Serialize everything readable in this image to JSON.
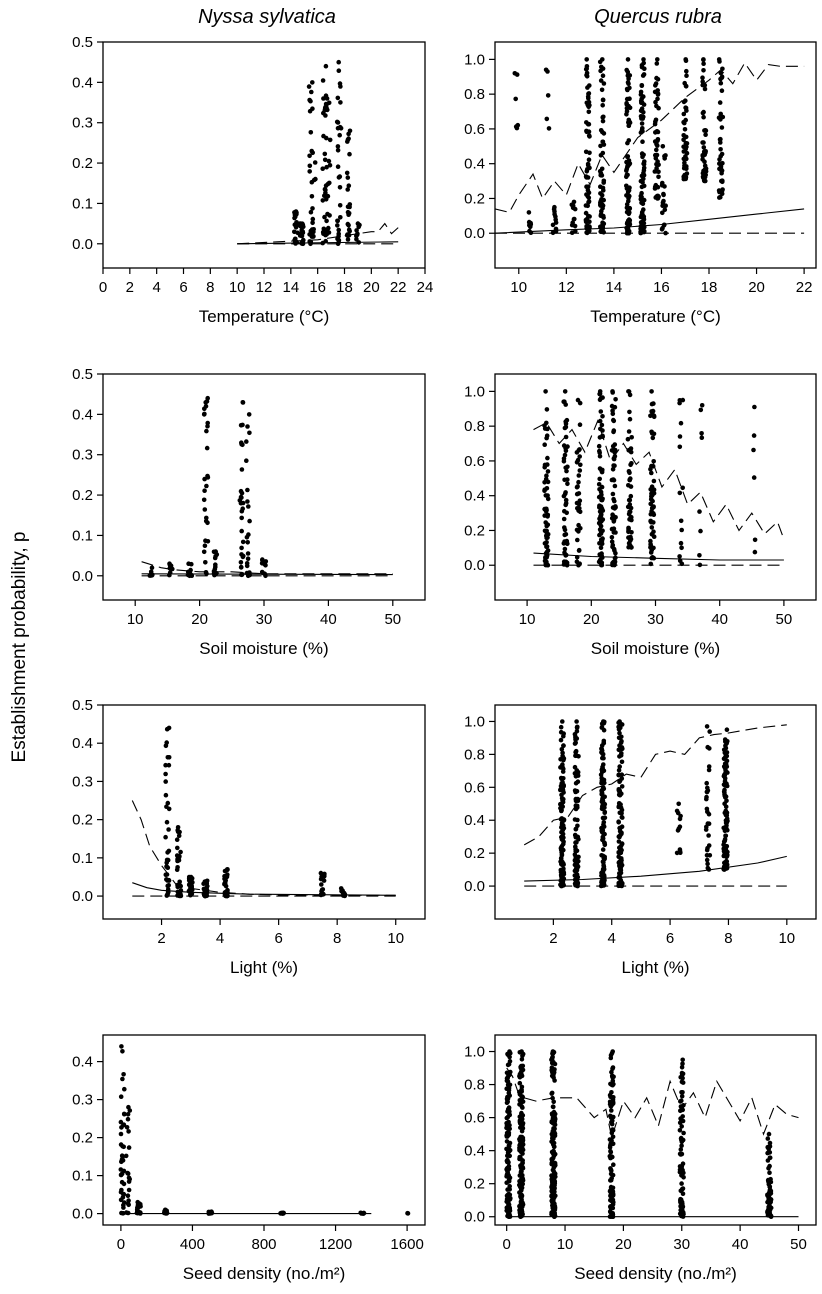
{
  "column_titles": [
    "Nyssa sylvatica",
    "Quercus rubra"
  ],
  "shared_ylabel": "Establishment probability, p",
  "chart_data": [
    {
      "id": "nyssa-temperature",
      "type": "scatter",
      "species": "Nyssa sylvatica",
      "xlabel": "Temperature (°C)",
      "xlim": [
        0,
        24
      ],
      "ylim": [
        -0.06,
        0.5
      ],
      "xticks": [
        0,
        2,
        4,
        6,
        8,
        10,
        12,
        14,
        16,
        18,
        20,
        22,
        24
      ],
      "yticks": [
        0.0,
        0.1,
        0.2,
        0.3,
        0.4,
        0.5
      ],
      "clusters": [
        {
          "x": 14.4,
          "ymax": 0.08,
          "n": 24
        },
        {
          "x": 14.8,
          "ymax": 0.05,
          "n": 18
        },
        {
          "x": 15.5,
          "ymax": 0.4,
          "n": 22
        },
        {
          "x": 15.7,
          "ymax": 0.23,
          "n": 14
        },
        {
          "x": 16.5,
          "ymax": 0.44,
          "n": 30
        },
        {
          "x": 16.8,
          "ymax": 0.36,
          "n": 20
        },
        {
          "x": 17.6,
          "ymax": 0.45,
          "n": 30
        },
        {
          "x": 18.3,
          "ymax": 0.28,
          "n": 24
        },
        {
          "x": 19.0,
          "ymax": 0.05,
          "n": 10
        }
      ],
      "lines": [
        {
          "style": "dashed",
          "x": [
            10,
            13,
            16,
            18,
            19,
            20,
            20.5,
            21,
            21.5,
            22
          ],
          "y": [
            0.0,
            0.005,
            0.01,
            0.02,
            0.025,
            0.03,
            0.03,
            0.05,
            0.025,
            0.04
          ]
        },
        {
          "style": "solid",
          "x": [
            10,
            22
          ],
          "y": [
            0.0,
            0.005
          ]
        },
        {
          "style": "dashed",
          "x": [
            10,
            22
          ],
          "y": [
            0.0,
            0.0
          ]
        }
      ]
    },
    {
      "id": "quercus-temperature",
      "type": "scatter",
      "species": "Quercus rubra",
      "xlabel": "Temperature (°C)",
      "xlim": [
        9,
        22.5
      ],
      "ylim": [
        -0.2,
        1.1
      ],
      "xticks": [
        10,
        12,
        14,
        16,
        18,
        20,
        22
      ],
      "yticks": [
        0.0,
        0.2,
        0.4,
        0.6,
        0.8,
        1.0
      ],
      "clusters": [
        {
          "x": 9.9,
          "ymax": 0.92,
          "ymin": 0.6,
          "n": 6
        },
        {
          "x": 11.2,
          "ymax": 0.94,
          "ymin": 0.6,
          "n": 5
        },
        {
          "x": 12.9,
          "ymax": 1.0,
          "ymin": 0.0,
          "n": 70
        },
        {
          "x": 13.5,
          "ymax": 1.0,
          "ymin": 0.0,
          "n": 70
        },
        {
          "x": 14.6,
          "ymax": 1.0,
          "ymin": 0.0,
          "n": 80
        },
        {
          "x": 15.2,
          "ymax": 1.0,
          "ymin": 0.0,
          "n": 80
        },
        {
          "x": 15.8,
          "ymax": 1.0,
          "ymin": 0.2,
          "n": 50
        },
        {
          "x": 16.1,
          "ymax": 0.5,
          "ymin": 0.0,
          "n": 20
        },
        {
          "x": 17.0,
          "ymax": 1.0,
          "ymin": 0.3,
          "n": 45
        },
        {
          "x": 17.8,
          "ymax": 1.0,
          "ymin": 0.3,
          "n": 45
        },
        {
          "x": 18.5,
          "ymax": 1.0,
          "ymin": 0.2,
          "n": 40
        },
        {
          "x": 10.5,
          "ymax": 0.12,
          "ymin": 0.0,
          "n": 10
        },
        {
          "x": 11.5,
          "ymax": 0.15,
          "ymin": 0.0,
          "n": 12
        },
        {
          "x": 12.3,
          "ymax": 0.18,
          "ymin": 0.0,
          "n": 12
        }
      ],
      "lines": [
        {
          "style": "dashed",
          "x": [
            9,
            9.6,
            10,
            10.6,
            11,
            11.5,
            12,
            12.5,
            13,
            13.5,
            14,
            15,
            16,
            17,
            18,
            18.5,
            19,
            19.5,
            20,
            20.5,
            21,
            22
          ],
          "y": [
            0.14,
            0.12,
            0.22,
            0.34,
            0.2,
            0.3,
            0.22,
            0.4,
            0.28,
            0.45,
            0.35,
            0.55,
            0.65,
            0.78,
            0.88,
            0.94,
            0.86,
            0.98,
            0.88,
            0.97,
            0.96,
            0.96
          ]
        },
        {
          "style": "solid",
          "x": [
            9,
            12,
            14,
            16,
            18,
            20,
            22
          ],
          "y": [
            0.0,
            0.02,
            0.03,
            0.05,
            0.08,
            0.11,
            0.14
          ]
        },
        {
          "style": "dashed",
          "x": [
            9,
            22
          ],
          "y": [
            0.0,
            0.0
          ]
        }
      ]
    },
    {
      "id": "nyssa-soil",
      "type": "scatter",
      "species": "Nyssa sylvatica",
      "xlabel": "Soil moisture (%)",
      "xlim": [
        5,
        55
      ],
      "ylim": [
        -0.06,
        0.5
      ],
      "xticks": [
        10,
        20,
        30,
        40,
        50
      ],
      "yticks": [
        0.0,
        0.1,
        0.2,
        0.3,
        0.4,
        0.5
      ],
      "clusters": [
        {
          "x": 12.5,
          "ymax": 0.02,
          "n": 8
        },
        {
          "x": 15.5,
          "ymax": 0.03,
          "n": 8
        },
        {
          "x": 18.5,
          "ymax": 0.03,
          "n": 10
        },
        {
          "x": 21.0,
          "ymax": 0.44,
          "n": 28
        },
        {
          "x": 22.5,
          "ymax": 0.06,
          "n": 14
        },
        {
          "x": 26.5,
          "ymax": 0.43,
          "n": 30
        },
        {
          "x": 27.5,
          "ymax": 0.4,
          "n": 20
        },
        {
          "x": 30.0,
          "ymax": 0.04,
          "n": 10
        }
      ],
      "lines": [
        {
          "style": "dashed",
          "x": [
            11,
            12,
            14,
            16,
            20,
            25,
            30,
            35,
            50
          ],
          "y": [
            0.035,
            0.03,
            0.02,
            0.015,
            0.01,
            0.01,
            0.005,
            0.005,
            0.005
          ]
        },
        {
          "style": "solid",
          "x": [
            11,
            50
          ],
          "y": [
            0.005,
            0.003
          ]
        },
        {
          "style": "dashed",
          "x": [
            11,
            50
          ],
          "y": [
            0.0,
            0.0
          ]
        }
      ]
    },
    {
      "id": "quercus-soil",
      "type": "scatter",
      "species": "Quercus rubra",
      "xlabel": "Soil moisture (%)",
      "xlim": [
        5,
        55
      ],
      "ylim": [
        -0.2,
        1.1
      ],
      "xticks": [
        10,
        20,
        30,
        40,
        50
      ],
      "yticks": [
        0.0,
        0.2,
        0.4,
        0.6,
        0.8,
        1.0
      ],
      "clusters": [
        {
          "x": 13,
          "ymax": 1.0,
          "ymin": 0.0,
          "n": 60
        },
        {
          "x": 16,
          "ymax": 1.0,
          "ymin": 0.0,
          "n": 50
        },
        {
          "x": 18,
          "ymax": 0.95,
          "ymin": 0.0,
          "n": 35
        },
        {
          "x": 21.5,
          "ymax": 1.0,
          "ymin": 0.0,
          "n": 80
        },
        {
          "x": 23.5,
          "ymax": 1.0,
          "ymin": 0.0,
          "n": 60
        },
        {
          "x": 26,
          "ymax": 1.0,
          "ymin": 0.1,
          "n": 50
        },
        {
          "x": 29.5,
          "ymax": 1.0,
          "ymin": 0.0,
          "n": 60
        },
        {
          "x": 34,
          "ymax": 0.95,
          "ymin": 0.0,
          "n": 15
        },
        {
          "x": 37,
          "ymax": 0.92,
          "ymin": 0.0,
          "n": 8
        },
        {
          "x": 45.5,
          "ymax": 0.91,
          "ymin": 0.0,
          "n": 6
        }
      ],
      "lines": [
        {
          "style": "dashed",
          "x": [
            11,
            13,
            15,
            17,
            19,
            21,
            23,
            25,
            27,
            29,
            31,
            33,
            35,
            37,
            39,
            41,
            43,
            45,
            47,
            49,
            50
          ],
          "y": [
            0.78,
            0.82,
            0.7,
            0.78,
            0.65,
            0.83,
            0.6,
            0.7,
            0.58,
            0.65,
            0.45,
            0.55,
            0.35,
            0.42,
            0.25,
            0.35,
            0.2,
            0.3,
            0.18,
            0.25,
            0.15
          ]
        },
        {
          "style": "solid",
          "x": [
            11,
            20,
            30,
            40,
            50
          ],
          "y": [
            0.07,
            0.05,
            0.04,
            0.03,
            0.03
          ]
        },
        {
          "style": "dashed",
          "x": [
            11,
            50
          ],
          "y": [
            0.0,
            0.0
          ]
        }
      ]
    },
    {
      "id": "nyssa-light",
      "type": "scatter",
      "species": "Nyssa sylvatica",
      "xlabel": "Light (%)",
      "xlim": [
        0,
        11
      ],
      "ylim": [
        -0.06,
        0.5
      ],
      "xticks": [
        2,
        4,
        6,
        8,
        10
      ],
      "yticks": [
        0.0,
        0.1,
        0.2,
        0.3,
        0.4,
        0.5
      ],
      "clusters": [
        {
          "x": 2.2,
          "ymax": 0.44,
          "n": 40
        },
        {
          "x": 2.6,
          "ymax": 0.18,
          "n": 30
        },
        {
          "x": 3.0,
          "ymax": 0.05,
          "n": 30
        },
        {
          "x": 3.5,
          "ymax": 0.04,
          "n": 30
        },
        {
          "x": 4.2,
          "ymax": 0.07,
          "n": 30
        },
        {
          "x": 7.5,
          "ymax": 0.06,
          "n": 14
        },
        {
          "x": 8.2,
          "ymax": 0.02,
          "n": 10
        }
      ],
      "lines": [
        {
          "style": "dashed",
          "x": [
            1,
            1.3,
            1.6,
            2,
            2.5,
            3,
            4,
            5,
            6,
            10
          ],
          "y": [
            0.25,
            0.2,
            0.13,
            0.08,
            0.03,
            0.02,
            0.01,
            0.005,
            0.003,
            0.002
          ]
        },
        {
          "style": "solid",
          "x": [
            1,
            1.5,
            2,
            3,
            5,
            10
          ],
          "y": [
            0.035,
            0.022,
            0.015,
            0.01,
            0.005,
            0.002
          ]
        },
        {
          "style": "dashed",
          "x": [
            1,
            10
          ],
          "y": [
            0.0,
            0.0
          ]
        }
      ]
    },
    {
      "id": "quercus-light",
      "type": "scatter",
      "species": "Quercus rubra",
      "xlabel": "Light (%)",
      "xlim": [
        0,
        11
      ],
      "ylim": [
        -0.2,
        1.1
      ],
      "xticks": [
        2,
        4,
        6,
        8,
        10
      ],
      "yticks": [
        0.0,
        0.2,
        0.4,
        0.6,
        0.8,
        1.0
      ],
      "clusters": [
        {
          "x": 2.3,
          "ymax": 1.0,
          "ymin": 0.0,
          "n": 120
        },
        {
          "x": 2.8,
          "ymax": 1.0,
          "ymin": 0.0,
          "n": 90
        },
        {
          "x": 3.7,
          "ymax": 1.0,
          "ymin": 0.0,
          "n": 120
        },
        {
          "x": 4.3,
          "ymax": 1.0,
          "ymin": 0.0,
          "n": 110
        },
        {
          "x": 6.3,
          "ymax": 0.5,
          "ymin": 0.2,
          "n": 12
        },
        {
          "x": 7.3,
          "ymax": 0.97,
          "ymin": 0.1,
          "n": 30
        },
        {
          "x": 7.9,
          "ymax": 0.95,
          "ymin": 0.1,
          "n": 110
        }
      ],
      "lines": [
        {
          "style": "dashed",
          "x": [
            1,
            1.5,
            2,
            2.5,
            3,
            3.5,
            4,
            4.5,
            5,
            5.5,
            6,
            6.5,
            7,
            7.5,
            8,
            9,
            10
          ],
          "y": [
            0.25,
            0.3,
            0.4,
            0.42,
            0.55,
            0.6,
            0.62,
            0.68,
            0.66,
            0.8,
            0.82,
            0.8,
            0.9,
            0.92,
            0.93,
            0.96,
            0.98
          ]
        },
        {
          "style": "solid",
          "x": [
            1,
            3,
            5,
            7,
            9,
            10
          ],
          "y": [
            0.03,
            0.04,
            0.06,
            0.09,
            0.14,
            0.18
          ]
        },
        {
          "style": "dashed",
          "x": [
            1,
            10
          ],
          "y": [
            0.0,
            0.0
          ]
        }
      ]
    },
    {
      "id": "nyssa-seed",
      "type": "scatter",
      "species": "Nyssa sylvatica",
      "xlabel": "Seed density (no./m²)",
      "xlim": [
        -100,
        1700
      ],
      "ylim": [
        -0.03,
        0.47
      ],
      "xticks": [
        0,
        400,
        800,
        1200,
        1600
      ],
      "yticks": [
        0.0,
        0.1,
        0.2,
        0.3,
        0.4
      ],
      "clusters": [
        {
          "x": 10,
          "ymax": 0.44,
          "n": 40
        },
        {
          "x": 40,
          "ymax": 0.28,
          "n": 20
        },
        {
          "x": 100,
          "ymax": 0.03,
          "n": 20
        },
        {
          "x": 250,
          "ymax": 0.01,
          "n": 10
        },
        {
          "x": 500,
          "ymax": 0.005,
          "n": 10
        },
        {
          "x": 900,
          "ymax": 0.002,
          "n": 8
        },
        {
          "x": 1350,
          "ymax": 0.002,
          "n": 6
        },
        {
          "x": 1600,
          "ymax": 0.001,
          "n": 2
        }
      ],
      "lines": [
        {
          "style": "solid",
          "x": [
            0,
            1400
          ],
          "y": [
            0.0,
            0.0
          ]
        }
      ]
    },
    {
      "id": "quercus-seed",
      "type": "scatter",
      "species": "Quercus rubra",
      "xlabel": "Seed density (no./m²)",
      "xlim": [
        -2,
        53
      ],
      "ylim": [
        -0.05,
        1.1
      ],
      "xticks": [
        0,
        10,
        20,
        30,
        40,
        50
      ],
      "yticks": [
        0.0,
        0.2,
        0.4,
        0.6,
        0.8,
        1.0
      ],
      "clusters": [
        {
          "x": 0.3,
          "ymax": 1.0,
          "ymin": 0.0,
          "n": 140
        },
        {
          "x": 2.5,
          "ymax": 1.0,
          "ymin": 0.0,
          "n": 160
        },
        {
          "x": 8,
          "ymax": 1.0,
          "ymin": 0.0,
          "n": 160
        },
        {
          "x": 18,
          "ymax": 1.0,
          "ymin": 0.0,
          "n": 110
        },
        {
          "x": 30,
          "ymax": 0.95,
          "ymin": 0.0,
          "n": 80
        },
        {
          "x": 45,
          "ymax": 0.5,
          "ymin": 0.0,
          "n": 60
        }
      ],
      "lines": [
        {
          "style": "dashed",
          "x": [
            0,
            1,
            2,
            3,
            5,
            8,
            12,
            15,
            17,
            18,
            20,
            22,
            24,
            26,
            28,
            30,
            32,
            34,
            36,
            38,
            40,
            42,
            44,
            46,
            48,
            50
          ],
          "y": [
            0.9,
            0.85,
            0.75,
            0.72,
            0.7,
            0.72,
            0.72,
            0.6,
            0.65,
            0.48,
            0.7,
            0.6,
            0.72,
            0.55,
            0.82,
            0.65,
            0.75,
            0.6,
            0.82,
            0.7,
            0.58,
            0.72,
            0.5,
            0.68,
            0.62,
            0.6
          ]
        },
        {
          "style": "solid",
          "x": [
            0,
            10,
            50
          ],
          "y": [
            0.0,
            0.0,
            0.0
          ]
        }
      ]
    }
  ]
}
